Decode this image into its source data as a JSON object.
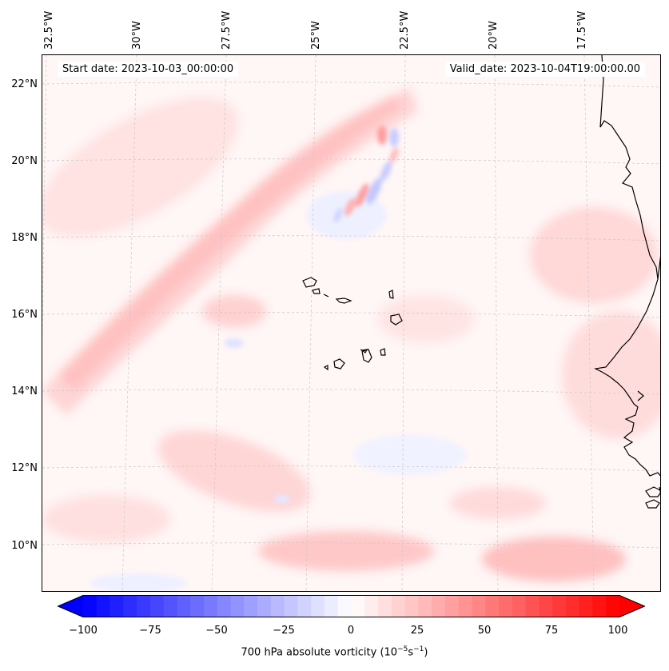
{
  "header": {
    "start_date": "Start date: 2023-10-03_00:00:00",
    "valid_date": "Valid_date: 2023-10-04T19:00:00.00"
  },
  "map": {
    "longitude_labels": [
      "32.5°W",
      "30°W",
      "27.5°W",
      "25°W",
      "22.5°W",
      "20°W",
      "17.5°W"
    ],
    "latitude_labels": [
      "22°N",
      "20°N",
      "18°N",
      "16°N",
      "14°N",
      "12°N",
      "10°N"
    ],
    "gridlines": true,
    "coastlines": true
  },
  "colorbar": {
    "ticks": [
      "−100",
      "−75",
      "−50",
      "−25",
      "0",
      "25",
      "50",
      "75",
      "100"
    ],
    "label_main": "700 hPa absolute vorticity (10",
    "label_exp1": "−5",
    "label_mid": "s",
    "label_exp2": "−1",
    "label_end": ")",
    "min": -100,
    "max": 100,
    "step": 5,
    "colormap": "bwr",
    "low_color": "#0000ff",
    "mid_color": "#ffffff",
    "high_color": "#ff0000"
  }
}
